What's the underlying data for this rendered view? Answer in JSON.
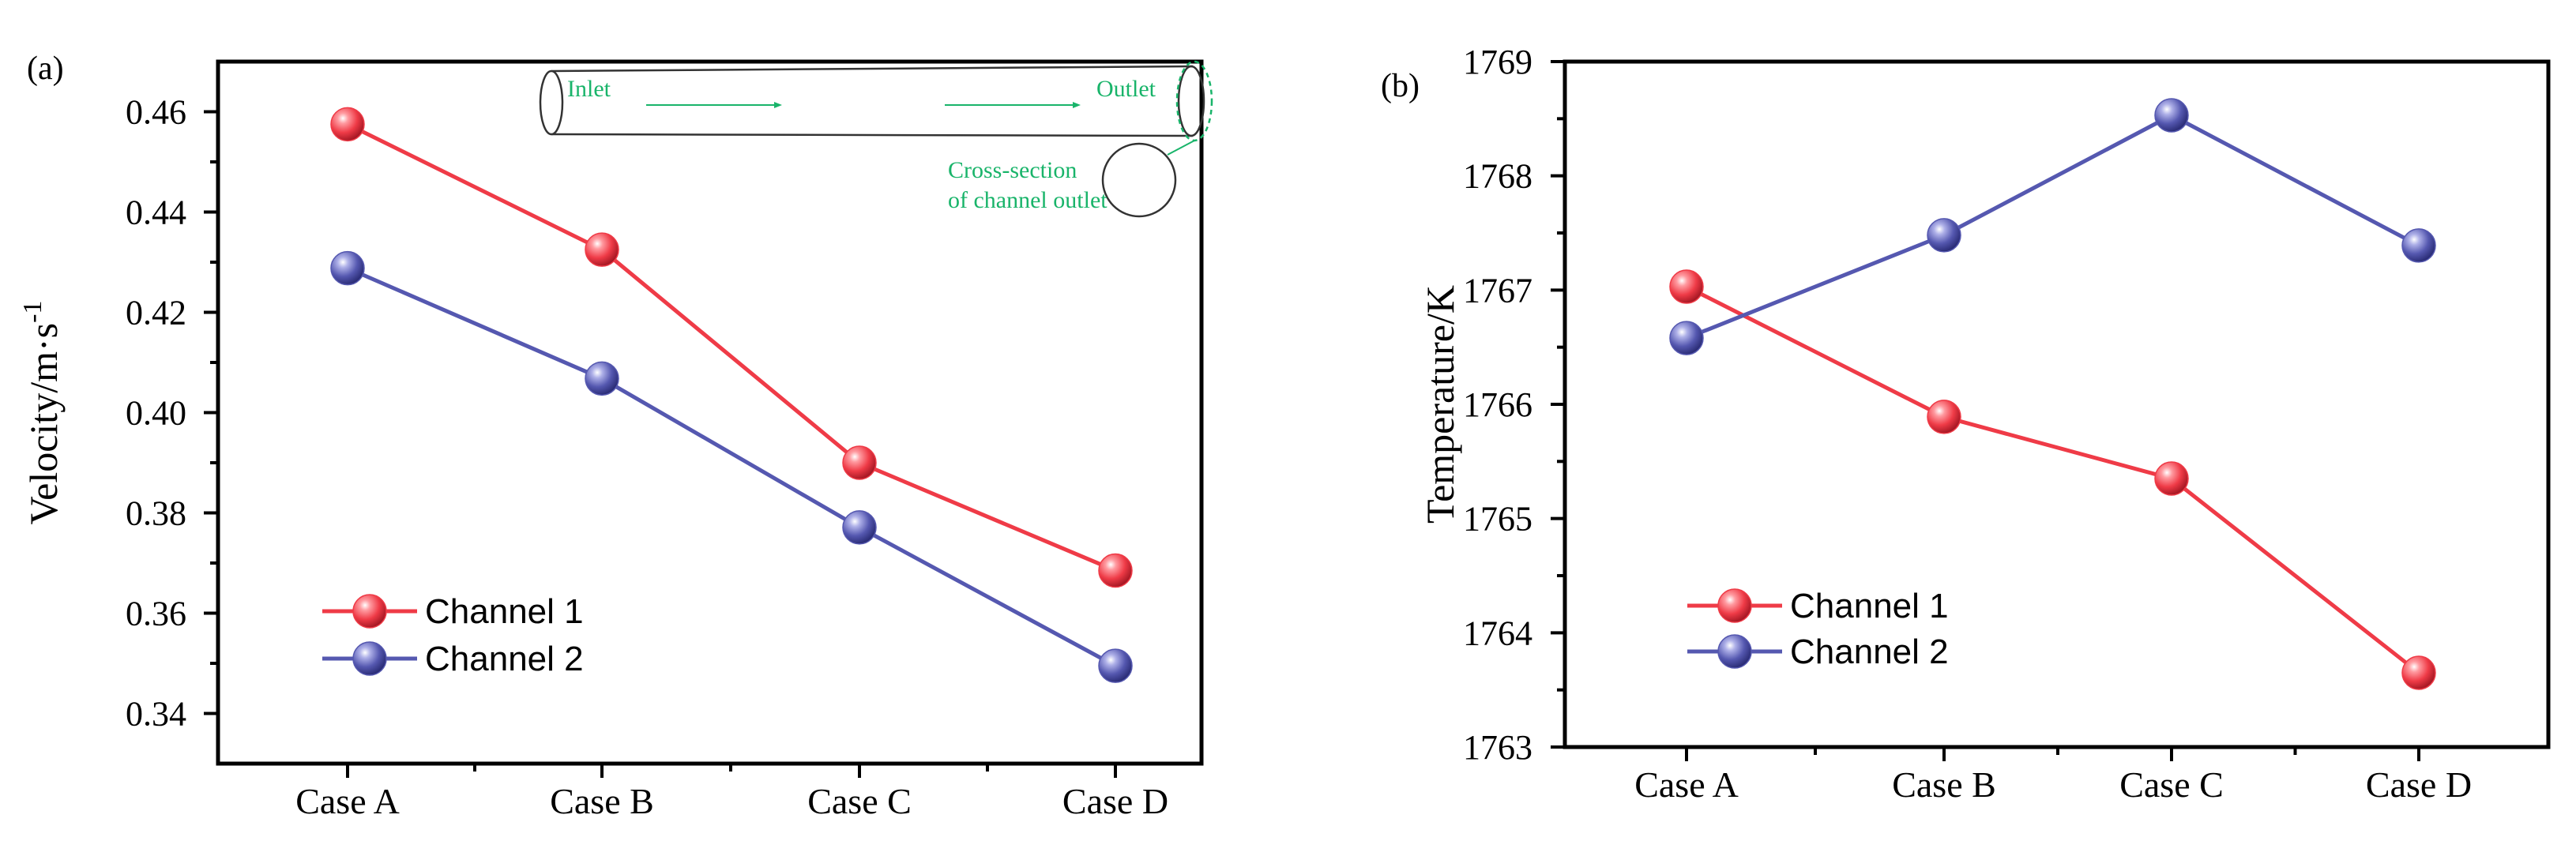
{
  "series_colors": {
    "channel_1": "#ef3b47",
    "channel_2": "#5558b0"
  },
  "inset_color": "#19b46a",
  "chart_data": [
    {
      "panel_label": "(a)",
      "type": "line",
      "ylabel_main": "Velocity/m·s",
      "ylabel_sup": "-1",
      "categories": [
        "Case A",
        "Case B",
        "Case C",
        "Case D"
      ],
      "ylim": [
        0.33,
        0.47
      ],
      "yticks": [
        0.34,
        0.36,
        0.38,
        0.4,
        0.42,
        0.44,
        0.46
      ],
      "ytick_labels": [
        "0.34",
        "0.36",
        "0.38",
        "0.40",
        "0.42",
        "0.44",
        "0.46"
      ],
      "series": [
        {
          "name": "Channel 1",
          "values": [
            0.4575,
            0.4325,
            0.39,
            0.3685
          ]
        },
        {
          "name": "Channel 2",
          "values": [
            0.4288,
            0.4068,
            0.3771,
            0.3495
          ]
        }
      ],
      "legend_position": "bottom-left",
      "inset": {
        "inlet": "Inlet",
        "outlet": "Outlet",
        "cross_line1": "Cross-section",
        "cross_line2": "of channel outlet"
      }
    },
    {
      "panel_label": "(b)",
      "type": "line",
      "ylabel_main": "Temperature/K",
      "categories": [
        "Case A",
        "Case B",
        "Case C",
        "Case D"
      ],
      "ylim": [
        1763,
        1769
      ],
      "yticks": [
        1763,
        1764,
        1765,
        1766,
        1767,
        1768,
        1769
      ],
      "ytick_labels": [
        "1763",
        "1764",
        "1765",
        "1766",
        "1767",
        "1768",
        "1769"
      ],
      "series": [
        {
          "name": "Channel 1",
          "values": [
            1767.03,
            1765.89,
            1765.35,
            1763.65
          ]
        },
        {
          "name": "Channel 2",
          "values": [
            1766.58,
            1767.48,
            1768.53,
            1767.39
          ]
        }
      ],
      "legend_position": "bottom-left"
    }
  ]
}
